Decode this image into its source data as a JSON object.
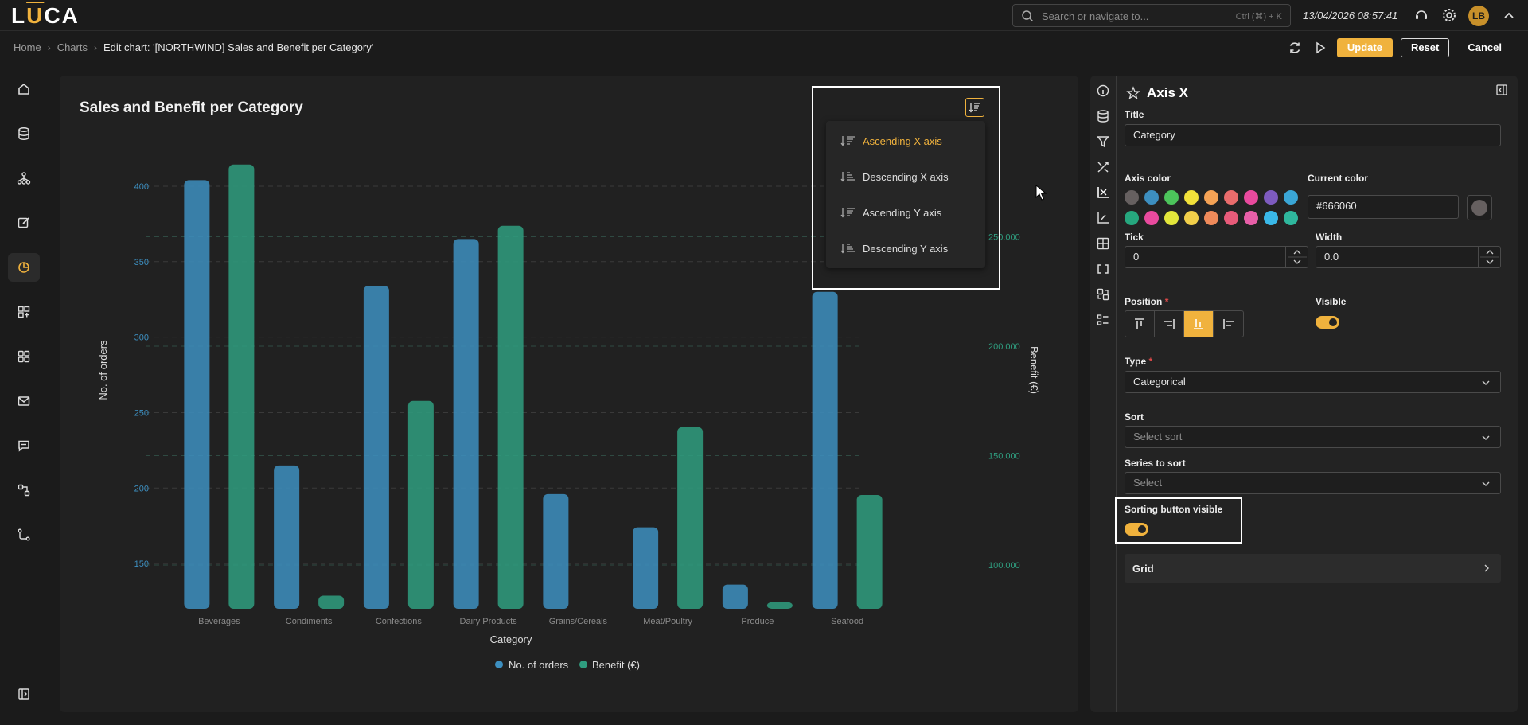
{
  "app": {
    "logo": "LUCA"
  },
  "topbar": {
    "search_placeholder": "Search or navigate to...",
    "search_shortcut": "Ctrl (⌘) + K",
    "datetime": "13/04/2026 08:57:41",
    "user_initials": "LB"
  },
  "breadcrumb": {
    "home": "Home",
    "charts": "Charts",
    "current": "Edit chart: '[NORTHWIND] Sales and Benefit per Category'"
  },
  "toolbar": {
    "update": "Update",
    "reset": "Reset",
    "cancel": "Cancel"
  },
  "chart_panel": {
    "sort_menu": {
      "items": [
        "Ascending X axis",
        "Descending X axis",
        "Ascending Y axis",
        "Descending Y axis"
      ],
      "active_index": 0
    }
  },
  "chart_data": {
    "type": "bar",
    "title": "Sales and Benefit per Category",
    "xlabel": "Category",
    "ylabel_left": "No. of orders",
    "ylabel_right": "Benefit (€)",
    "categories": [
      "Beverages",
      "Condiments",
      "Confections",
      "Dairy Products",
      "Grains/Cereals",
      "Meat/Poultry",
      "Produce",
      "Seafood"
    ],
    "series": [
      {
        "name": "No. of orders",
        "axis": "left",
        "color": "#3d8fc0",
        "values": [
          404,
          215,
          334,
          365,
          196,
          174,
          136,
          330
        ]
      },
      {
        "name": "Benefit (€)",
        "axis": "right",
        "color": "#2f9d7f",
        "values": [
          283000,
          86000,
          175000,
          255000,
          76000,
          163000,
          83000,
          132000
        ]
      }
    ],
    "y_left": {
      "min": 120,
      "max": 410,
      "ticks": [
        "400",
        "350",
        "300",
        "250",
        "200",
        "150"
      ],
      "tick_values": [
        400,
        350,
        300,
        250,
        200,
        150
      ],
      "color": "#3d8fc0"
    },
    "y_right": {
      "min": 80000,
      "max": 280000,
      "ticks": [
        "250.000",
        "200.000",
        "150.000",
        "100.000"
      ],
      "tick_values": [
        250000,
        200000,
        150000,
        100000
      ],
      "color": "#2f9d7f"
    },
    "legend_position": "bottom-center",
    "grid": true
  },
  "side_tabs": [
    "info-icon",
    "database-icon",
    "filter-icon",
    "tools-icon",
    "axis-x-icon",
    "axis-y-icon",
    "layout-icon",
    "brackets-icon",
    "sync-icon",
    "list-icon"
  ],
  "props": {
    "title": "Axis X",
    "title_label": "Title",
    "title_value": "Category",
    "axis_color_label": "Axis color",
    "current_color_label": "Current color",
    "current_color_value": "#666060",
    "palette_row1": [
      "#666060",
      "#3d8fc0",
      "#4cc45b",
      "#f1e13a",
      "#f5a255",
      "#ea6c6c",
      "#e94a9e",
      "#7e5bbf",
      "#3aa6d6"
    ],
    "palette_row2": [
      "#26a77e",
      "#e94a9e",
      "#e3e63b",
      "#f1cf4a",
      "#ef8a5a",
      "#e85b7a",
      "#e85fa8",
      "#3ab8e8",
      "#2fb79d"
    ],
    "tick_label": "Tick",
    "tick_value": "0",
    "width_label": "Width",
    "width_value": "0.0",
    "position_label": "Position",
    "visible_label": "Visible",
    "type_label": "Type",
    "type_value": "Categorical",
    "sort_label": "Sort",
    "sort_placeholder": "Select sort",
    "series_sort_label": "Series to sort",
    "series_sort_placeholder": "Select",
    "sorting_button_label": "Sorting button visible",
    "grid_label": "Grid"
  }
}
